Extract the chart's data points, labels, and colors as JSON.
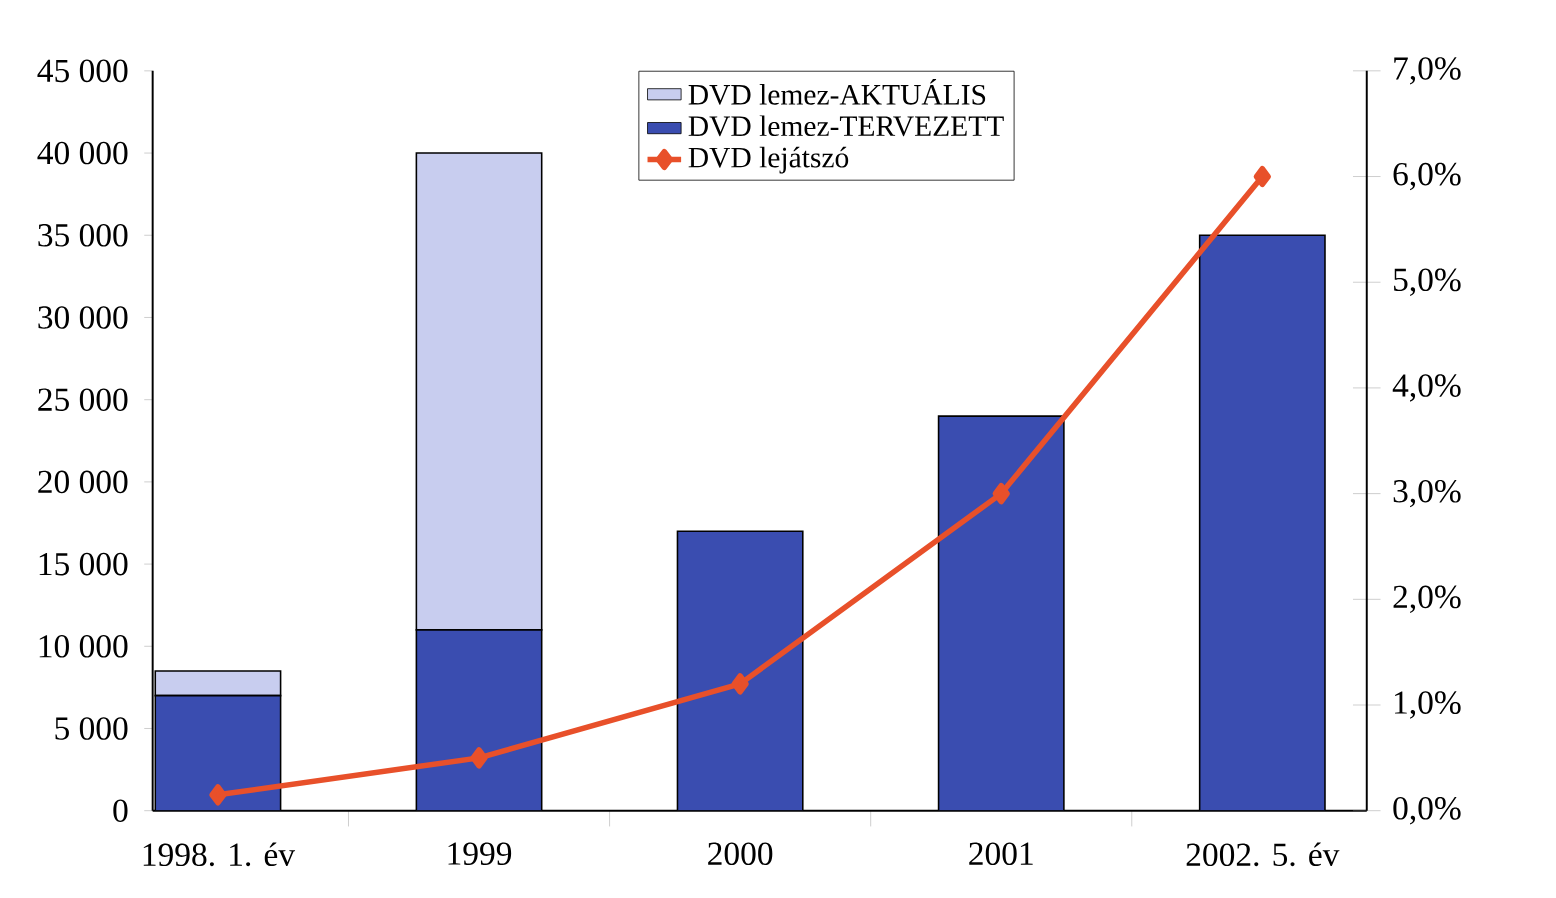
{
  "chart_data": {
    "type": "bar",
    "stacked": true,
    "categories": [
      "1998. 1. év",
      "1999",
      "2000",
      "2001",
      "2002. 5. év"
    ],
    "series": [
      {
        "name": "DVD lemez-TERVEZETT",
        "color": "#3a4db0",
        "values": [
          7000,
          11000,
          17000,
          24000,
          35000
        ]
      },
      {
        "name": "DVD lemez-AKTUÁLIS",
        "color": "#c8cdef",
        "values": [
          1500,
          29000,
          null,
          null,
          null
        ]
      },
      {
        "name": "DVD lejátszó",
        "type": "line",
        "axis": "y2",
        "color": "#e8502a",
        "marker": "diamond",
        "values": [
          0.15,
          0.5,
          1.2,
          3.0,
          6.0
        ]
      }
    ],
    "ylim": [
      0,
      45000
    ],
    "yticks": [
      0,
      {
        "value": 5000,
        "label": "5 000"
      },
      {
        "value": 10000,
        "label": "10 000"
      },
      {
        "value": 15000,
        "label": "15 000"
      },
      {
        "value": 20000,
        "label": "20 000"
      },
      {
        "value": 25000,
        "label": "25 000"
      },
      {
        "value": 30000,
        "label": "30 000"
      },
      {
        "value": 35000,
        "label": "35 000"
      },
      {
        "value": 40000,
        "label": "40 000"
      },
      {
        "value": 45000,
        "label": "45 000"
      }
    ],
    "y2lim": [
      0,
      7
    ],
    "y2ticks": [
      {
        "value": 0,
        "label": "0,0%"
      },
      {
        "value": 1,
        "label": "1,0%"
      },
      {
        "value": 2,
        "label": "2,0%"
      },
      {
        "value": 3,
        "label": "3,0%"
      },
      {
        "value": 4,
        "label": "4,0%"
      },
      {
        "value": 5,
        "label": "5,0%"
      },
      {
        "value": 6,
        "label": "6,0%"
      },
      {
        "value": 7,
        "label": "7,0%"
      }
    ],
    "legend": "top",
    "grid": false
  }
}
